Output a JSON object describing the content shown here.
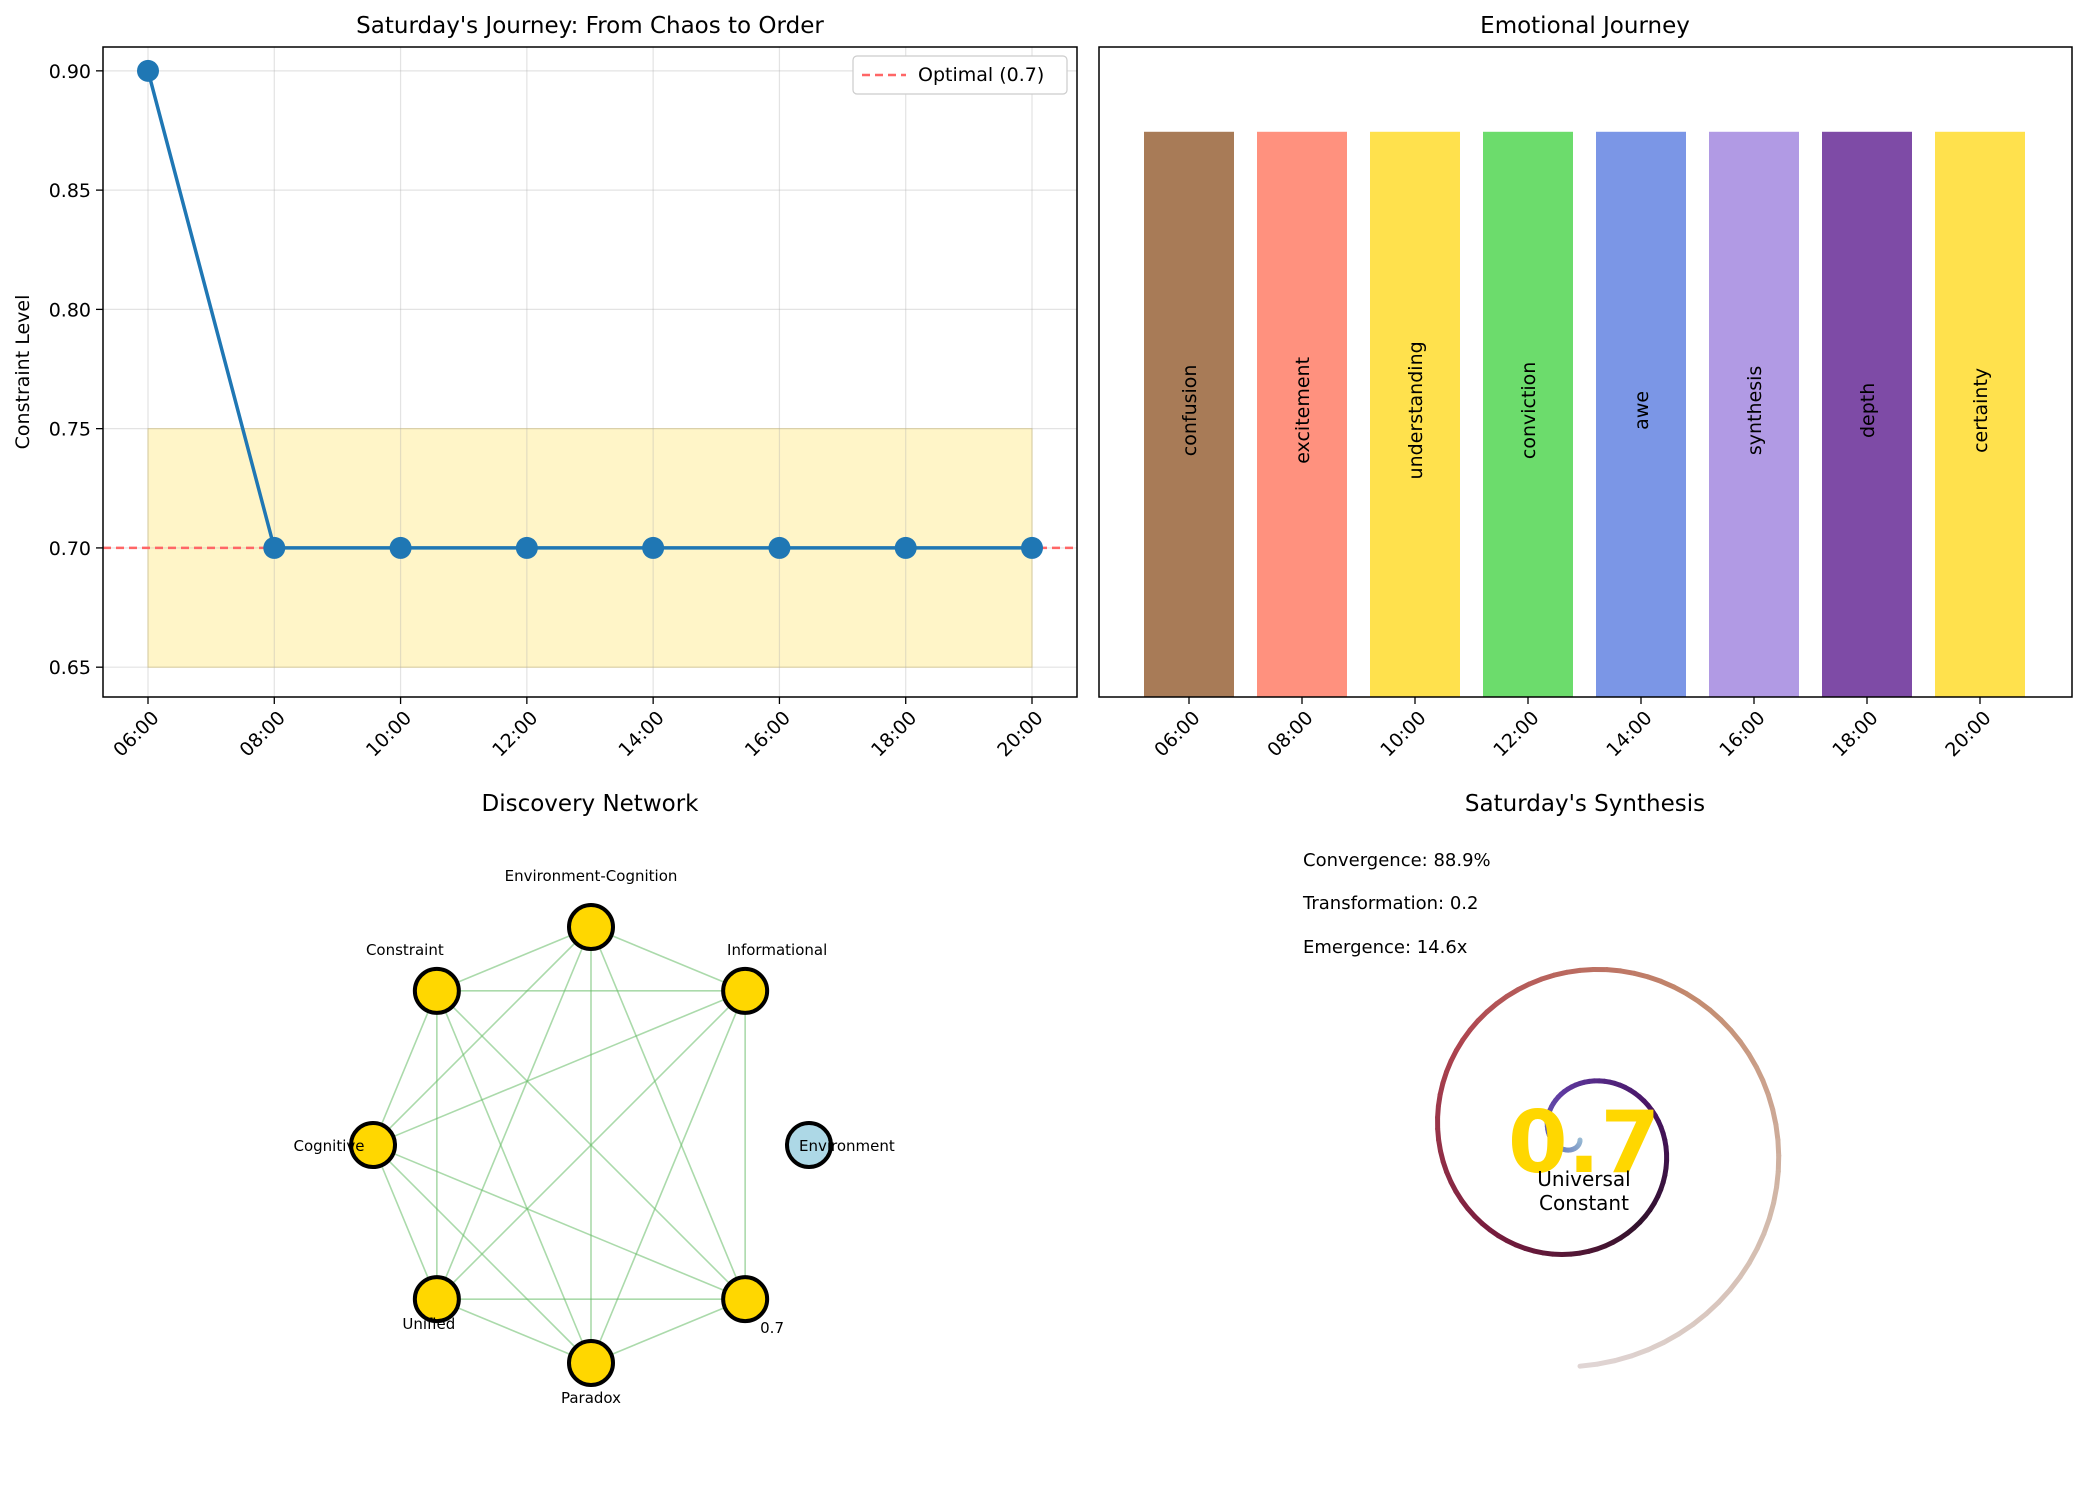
{
  "chart_data": [
    {
      "type": "line",
      "title": "Saturday's Journey: From Chaos to Order",
      "xlabel": "",
      "ylabel": "Constraint Level",
      "categories": [
        "06:00",
        "08:00",
        "10:00",
        "12:00",
        "14:00",
        "16:00",
        "18:00",
        "20:00"
      ],
      "values": [
        0.9,
        0.7,
        0.7,
        0.7,
        0.7,
        0.7,
        0.7,
        0.7
      ],
      "ylim": [
        0.6375,
        0.91
      ],
      "yticks": [
        "0.65",
        "0.70",
        "0.75",
        "0.80",
        "0.85",
        "0.90"
      ],
      "ytick_values": [
        0.65,
        0.7,
        0.75,
        0.8,
        0.85,
        0.9
      ],
      "band": [
        0.65,
        0.75
      ],
      "reference_line": {
        "value": 0.7,
        "label": "Optimal (0.7)",
        "color": "#ff6666"
      },
      "line_color": "#1f77b4",
      "band_color": "#fff5c8",
      "grid": true,
      "legend_position": "top-right"
    },
    {
      "type": "bar",
      "title": "Emotional Journey",
      "categories": [
        "06:00",
        "08:00",
        "10:00",
        "12:00",
        "14:00",
        "16:00",
        "18:00",
        "20:00"
      ],
      "values": [
        1,
        1,
        1,
        1,
        1,
        1,
        1,
        1
      ],
      "bar_labels": [
        "confusion",
        "excitement",
        "understanding",
        "conviction",
        "awe",
        "synthesis",
        "depth",
        "certainty"
      ],
      "colors": [
        "#a87b57",
        "#ff917e",
        "#ffe14d",
        "#6cdc6c",
        "#7b96e6",
        "#b19ae4",
        "#7e4ba6",
        "#ffe14d"
      ],
      "ylim": [
        0,
        1.15
      ]
    },
    {
      "type": "network",
      "title": "Discovery Network",
      "nodes": [
        {
          "label": "Environment-Cognition",
          "color": "#ffd700"
        },
        {
          "label": "Informational",
          "color": "#ffd700"
        },
        {
          "label": "Environment",
          "color": "#add8e6"
        },
        {
          "label": "0.7",
          "color": "#ffd700"
        },
        {
          "label": "Paradox",
          "color": "#ffd700"
        },
        {
          "label": "Unified",
          "color": "#ffd700"
        },
        {
          "label": "Cognitive",
          "color": "#ffd700"
        },
        {
          "label": "Constraint",
          "color": "#ffd700"
        }
      ],
      "edge_color": "#66bb66"
    },
    {
      "type": "summary",
      "title": "Saturday's Synthesis",
      "stats": [
        "Convergence: 88.9%",
        "Transformation: 0.2",
        "Emergence: 14.6x"
      ],
      "center_value": "0.7",
      "center_value_color": "#ffd700",
      "center_label": [
        "Universal",
        "Constant"
      ]
    }
  ]
}
